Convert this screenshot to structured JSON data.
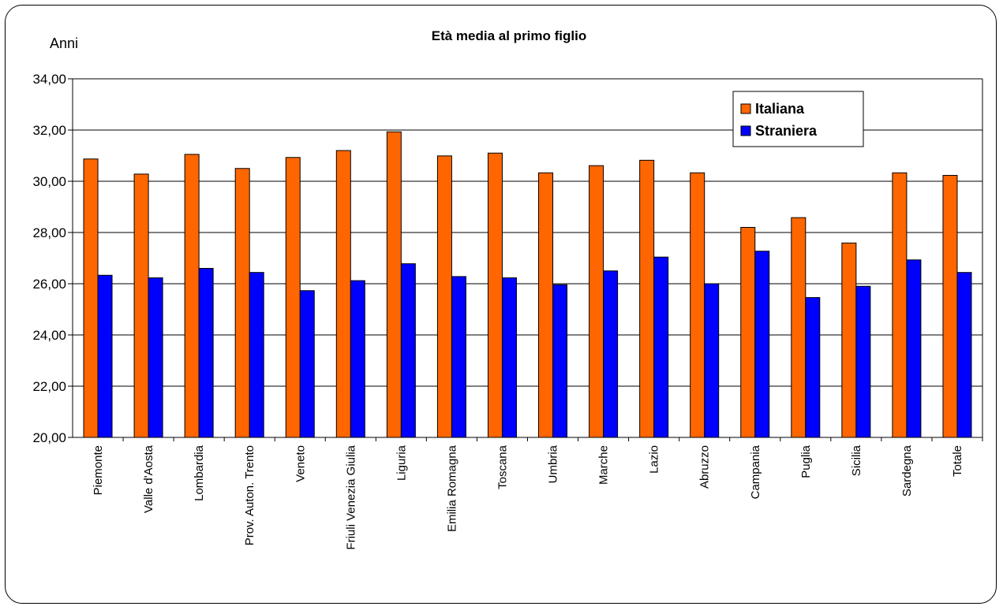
{
  "chart_data": {
    "type": "bar",
    "title": "Età media al primo figlio",
    "ylabel": "Anni",
    "xlabel": "",
    "ylim": [
      20,
      34
    ],
    "yticks": [
      "20,00",
      "22,00",
      "24,00",
      "26,00",
      "28,00",
      "30,00",
      "32,00",
      "34,00"
    ],
    "grid": "horizontal",
    "legend_position": "top-right",
    "categories": [
      "Piemonte",
      "Valle d'Aosta",
      "Lombardia",
      "Prov. Auton. Trento",
      "Veneto",
      "Friuli Venezia Giulia",
      "Liguria",
      "Emilia Romagna",
      "Toscana",
      "Umbria",
      "Marche",
      "Lazio",
      "Abruzzo",
      "Campania",
      "Puglia",
      "Sicilia",
      "Sardegna",
      "Totale"
    ],
    "series": [
      {
        "name": "Italiana",
        "color": "#ff6600",
        "values": [
          30.87,
          30.28,
          31.05,
          30.5,
          30.93,
          31.2,
          31.93,
          30.99,
          31.1,
          30.33,
          30.61,
          30.82,
          30.33,
          28.2,
          28.58,
          27.59,
          30.33,
          30.23
        ]
      },
      {
        "name": "Straniera",
        "color": "#0000ff",
        "values": [
          26.33,
          26.23,
          26.6,
          26.44,
          25.73,
          26.12,
          26.78,
          26.28,
          26.23,
          25.96,
          26.5,
          27.04,
          26.0,
          27.27,
          25.46,
          25.9,
          26.93,
          26.44
        ]
      }
    ]
  }
}
